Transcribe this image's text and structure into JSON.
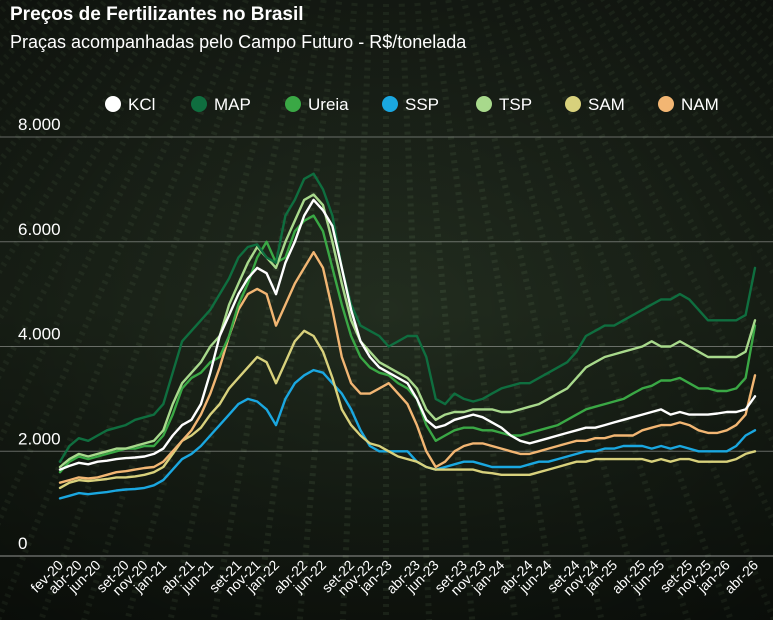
{
  "chart_data": {
    "type": "line",
    "title": "Preços de Fertilizantes no Brasil",
    "subtitle": "Praças acompanhadas pelo Campo Futuro - R$/tonelada",
    "xlabel": "",
    "ylabel": "",
    "ylim": [
      0,
      8000
    ],
    "yticks": [
      0,
      2000,
      4000,
      6000,
      8000
    ],
    "ytick_labels": [
      "0",
      "2.000",
      "4.000",
      "6.000",
      "8.000"
    ],
    "grid": true,
    "legend": "top",
    "x_tick_labels": [
      "fev-20",
      "abr-20",
      "jun-20",
      "set-20",
      "nov-20",
      "jan-21",
      "abr-21",
      "jun-21",
      "set-21",
      "nov-21",
      "jan-22",
      "abr-22",
      "jun-22",
      "set-22",
      "nov-22",
      "jan-23",
      "abr-23",
      "jun-23",
      "set-23",
      "nov-23",
      "jan-24",
      "abr-24",
      "jun-24",
      "set-24",
      "nov-24",
      "jan-25",
      "abr-25",
      "jun-25",
      "set-25",
      "nov-25",
      "jan-26",
      "abr-26"
    ],
    "x_tick_positions": [
      0,
      2,
      4,
      7,
      9,
      11,
      14,
      16,
      19,
      21,
      23,
      26,
      28,
      31,
      33,
      35,
      38,
      40,
      43,
      45,
      47,
      50,
      52,
      55,
      57,
      59,
      62,
      64,
      67,
      69,
      71,
      74
    ],
    "x_months": [
      "fev-20",
      "mar-20",
      "abr-20",
      "mai-20",
      "jun-20",
      "jul-20",
      "ago-20",
      "set-20",
      "out-20",
      "nov-20",
      "dez-20",
      "jan-21",
      "fev-21",
      "mar-21",
      "abr-21",
      "mai-21",
      "jun-21",
      "jul-21",
      "ago-21",
      "set-21",
      "out-21",
      "nov-21",
      "dez-21",
      "jan-22",
      "fev-22",
      "mar-22",
      "abr-22",
      "mai-22",
      "jun-22",
      "jul-22",
      "ago-22",
      "set-22",
      "out-22",
      "nov-22",
      "dez-22",
      "jan-23",
      "fev-23",
      "mar-23",
      "abr-23",
      "mai-23",
      "jun-23",
      "jul-23",
      "ago-23",
      "set-23",
      "out-23",
      "nov-23",
      "dez-23",
      "jan-24",
      "fev-24",
      "mar-24",
      "abr-24",
      "mai-24",
      "jun-24",
      "jul-24",
      "ago-24",
      "set-24",
      "out-24",
      "nov-24",
      "dez-24",
      "jan-25",
      "fev-25",
      "mar-25",
      "abr-25",
      "mai-25",
      "jun-25",
      "jul-25",
      "ago-25",
      "set-25",
      "out-25",
      "nov-25",
      "dez-25",
      "jan-26",
      "fev-26",
      "mar-26",
      "abr-26"
    ],
    "series": [
      {
        "name": "KCl",
        "color": "#ffffff",
        "values": [
          1650,
          1720,
          1780,
          1750,
          1800,
          1820,
          1850,
          1870,
          1880,
          1900,
          1950,
          2050,
          2300,
          2500,
          2600,
          2900,
          3500,
          4200,
          4600,
          5000,
          5300,
          5500,
          5400,
          5000,
          5600,
          6000,
          6500,
          6800,
          6600,
          6300,
          5500,
          4700,
          4100,
          3800,
          3600,
          3500,
          3400,
          3300,
          3000,
          2600,
          2450,
          2500,
          2600,
          2650,
          2700,
          2650,
          2550,
          2450,
          2300,
          2200,
          2150,
          2200,
          2250,
          2300,
          2350,
          2400,
          2450,
          2450,
          2500,
          2550,
          2600,
          2650,
          2700,
          2750,
          2800,
          2700,
          2750,
          2700,
          2700,
          2700,
          2720,
          2750,
          2750,
          2800,
          3050
        ]
      },
      {
        "name": "MAP",
        "color": "#0f6e3f",
        "values": [
          1800,
          2100,
          2250,
          2200,
          2300,
          2400,
          2450,
          2500,
          2600,
          2650,
          2700,
          2900,
          3500,
          4100,
          4300,
          4500,
          4700,
          5000,
          5300,
          5700,
          5900,
          5950,
          5700,
          5600,
          6500,
          6800,
          7200,
          7300,
          7000,
          6500,
          5500,
          4800,
          4400,
          4300,
          4200,
          4000,
          4100,
          4200,
          4200,
          3800,
          3000,
          2900,
          3100,
          3000,
          2950,
          3000,
          3100,
          3200,
          3250,
          3300,
          3300,
          3400,
          3500,
          3600,
          3700,
          3900,
          4200,
          4300,
          4400,
          4400,
          4500,
          4600,
          4700,
          4800,
          4900,
          4900,
          5000,
          4900,
          4700,
          4500,
          4500,
          4500,
          4500,
          4600,
          5500
        ]
      },
      {
        "name": "Ureia",
        "color": "#3aa845",
        "values": [
          1600,
          1800,
          1900,
          1850,
          1900,
          1950,
          2000,
          2050,
          2050,
          2100,
          2100,
          2300,
          2700,
          3200,
          3400,
          3500,
          3700,
          3800,
          4200,
          4800,
          5200,
          5700,
          6000,
          5600,
          5700,
          6200,
          6400,
          6500,
          6200,
          5500,
          4800,
          4200,
          3800,
          3600,
          3500,
          3450,
          3300,
          3200,
          3000,
          2500,
          2200,
          2300,
          2400,
          2450,
          2450,
          2400,
          2400,
          2350,
          2300,
          2300,
          2350,
          2400,
          2450,
          2500,
          2600,
          2700,
          2800,
          2850,
          2900,
          2950,
          3000,
          3100,
          3200,
          3250,
          3350,
          3350,
          3400,
          3300,
          3200,
          3200,
          3150,
          3150,
          3200,
          3400,
          4400
        ]
      },
      {
        "name": "SSP",
        "color": "#1aa7e0",
        "values": [
          1100,
          1150,
          1200,
          1180,
          1200,
          1220,
          1250,
          1270,
          1280,
          1300,
          1350,
          1450,
          1650,
          1850,
          1950,
          2100,
          2300,
          2500,
          2700,
          2900,
          3000,
          2950,
          2800,
          2500,
          3000,
          3300,
          3450,
          3550,
          3500,
          3300,
          3100,
          2800,
          2400,
          2100,
          2000,
          2000,
          2000,
          2000,
          1800,
          1700,
          1650,
          1700,
          1750,
          1800,
          1800,
          1750,
          1700,
          1700,
          1700,
          1700,
          1750,
          1800,
          1800,
          1850,
          1900,
          1950,
          2000,
          2000,
          2050,
          2050,
          2100,
          2100,
          2100,
          2050,
          2100,
          2050,
          2100,
          2050,
          2000,
          2000,
          2000,
          2000,
          2100,
          2300,
          2400
        ]
      },
      {
        "name": "TSP",
        "color": "#a8d98c",
        "values": [
          1700,
          1850,
          1950,
          1900,
          1950,
          2000,
          2050,
          2050,
          2100,
          2150,
          2200,
          2400,
          2900,
          3300,
          3500,
          3700,
          4000,
          4200,
          4800,
          5200,
          5600,
          5900,
          5700,
          5500,
          6000,
          6400,
          6800,
          6900,
          6700,
          6000,
          5200,
          4500,
          4100,
          3900,
          3700,
          3600,
          3500,
          3400,
          3200,
          2800,
          2600,
          2700,
          2750,
          2750,
          2800,
          2800,
          2800,
          2750,
          2750,
          2800,
          2850,
          2900,
          3000,
          3100,
          3200,
          3400,
          3600,
          3700,
          3800,
          3850,
          3900,
          3950,
          4000,
          4100,
          4000,
          4000,
          4100,
          4000,
          3900,
          3800,
          3800,
          3800,
          3800,
          3900,
          4500
        ]
      },
      {
        "name": "SAM",
        "color": "#d8d17c",
        "values": [
          1300,
          1400,
          1450,
          1430,
          1450,
          1470,
          1500,
          1500,
          1520,
          1550,
          1600,
          1700,
          1950,
          2200,
          2300,
          2450,
          2700,
          2900,
          3200,
          3400,
          3600,
          3800,
          3700,
          3300,
          3700,
          4100,
          4300,
          4200,
          3900,
          3400,
          2800,
          2500,
          2300,
          2150,
          2100,
          2000,
          1900,
          1850,
          1800,
          1700,
          1650,
          1650,
          1650,
          1650,
          1650,
          1600,
          1580,
          1550,
          1550,
          1550,
          1550,
          1600,
          1650,
          1700,
          1750,
          1800,
          1800,
          1850,
          1850,
          1850,
          1850,
          1850,
          1850,
          1800,
          1850,
          1800,
          1850,
          1850,
          1800,
          1800,
          1800,
          1800,
          1850,
          1950,
          2000
        ]
      },
      {
        "name": "NAM",
        "color": "#f2b673",
        "values": [
          1400,
          1450,
          1500,
          1480,
          1500,
          1550,
          1600,
          1620,
          1650,
          1680,
          1700,
          1800,
          2000,
          2200,
          2400,
          2700,
          3100,
          3600,
          4200,
          4700,
          5000,
          5100,
          5000,
          4400,
          4800,
          5200,
          5500,
          5800,
          5500,
          4700,
          3800,
          3300,
          3100,
          3100,
          3200,
          3300,
          3100,
          2900,
          2500,
          2000,
          1700,
          1800,
          2000,
          2100,
          2150,
          2150,
          2100,
          2050,
          2000,
          1950,
          1950,
          2000,
          2050,
          2100,
          2150,
          2200,
          2200,
          2250,
          2250,
          2300,
          2300,
          2300,
          2400,
          2450,
          2500,
          2500,
          2550,
          2500,
          2400,
          2350,
          2350,
          2400,
          2500,
          2700,
          3450
        ]
      }
    ]
  }
}
